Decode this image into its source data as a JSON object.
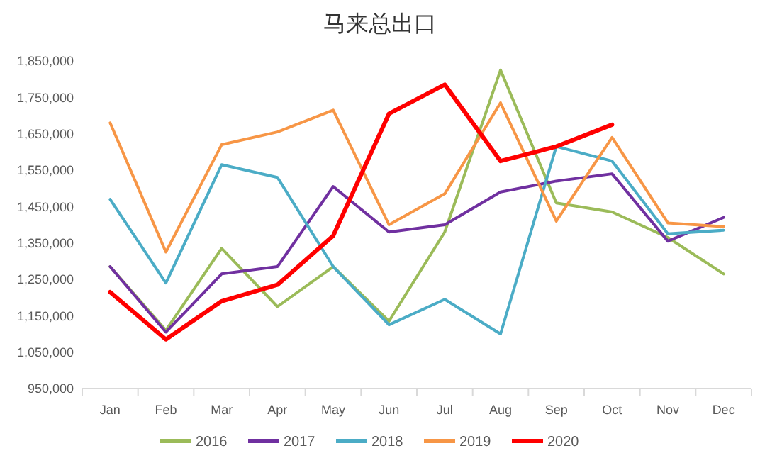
{
  "chart_data": {
    "type": "line",
    "title": "马来总出口",
    "categories": [
      "Jan",
      "Feb",
      "Mar",
      "Apr",
      "May",
      "Jun",
      "Jul",
      "Aug",
      "Sep",
      "Oct",
      "Nov",
      "Dec"
    ],
    "series": [
      {
        "name": "2016",
        "color": "#9bbb59",
        "values": [
          1285000,
          1110000,
          1335000,
          1175000,
          1285000,
          1135000,
          1380000,
          1825000,
          1460000,
          1435000,
          1365000,
          1265000
        ]
      },
      {
        "name": "2017",
        "color": "#7030a0",
        "values": [
          1285000,
          1105000,
          1265000,
          1285000,
          1505000,
          1380000,
          1400000,
          1490000,
          1520000,
          1540000,
          1355000,
          1420000
        ]
      },
      {
        "name": "2018",
        "color": "#4bacc6",
        "values": [
          1470000,
          1240000,
          1565000,
          1530000,
          1285000,
          1125000,
          1195000,
          1100000,
          1615000,
          1575000,
          1375000,
          1385000
        ]
      },
      {
        "name": "2019",
        "color": "#f79646",
        "values": [
          1680000,
          1325000,
          1620000,
          1655000,
          1715000,
          1400000,
          1485000,
          1735000,
          1410000,
          1640000,
          1405000,
          1395000
        ]
      },
      {
        "name": "2020",
        "color": "#ff0000",
        "values": [
          1215000,
          1085000,
          1190000,
          1235000,
          1370000,
          1705000,
          1785000,
          1575000,
          1615000,
          1675000,
          null,
          null
        ]
      }
    ],
    "ylim": [
      950000,
      1850000
    ],
    "yticks": [
      {
        "value": 950000,
        "label": "950,000"
      },
      {
        "value": 1050000,
        "label": "1,050,000"
      },
      {
        "value": 1150000,
        "label": "1,150,000"
      },
      {
        "value": 1250000,
        "label": "1,250,000"
      },
      {
        "value": 1350000,
        "label": "1,350,000"
      },
      {
        "value": 1450000,
        "label": "1,450,000"
      },
      {
        "value": 1550000,
        "label": "1,550,000"
      },
      {
        "value": 1650000,
        "label": "1,650,000"
      },
      {
        "value": 1750000,
        "label": "1,750,000"
      },
      {
        "value": 1850000,
        "label": "1,850,000"
      }
    ],
    "grid": false,
    "legend": "bottom",
    "marker": "none",
    "line_style": "solid"
  }
}
